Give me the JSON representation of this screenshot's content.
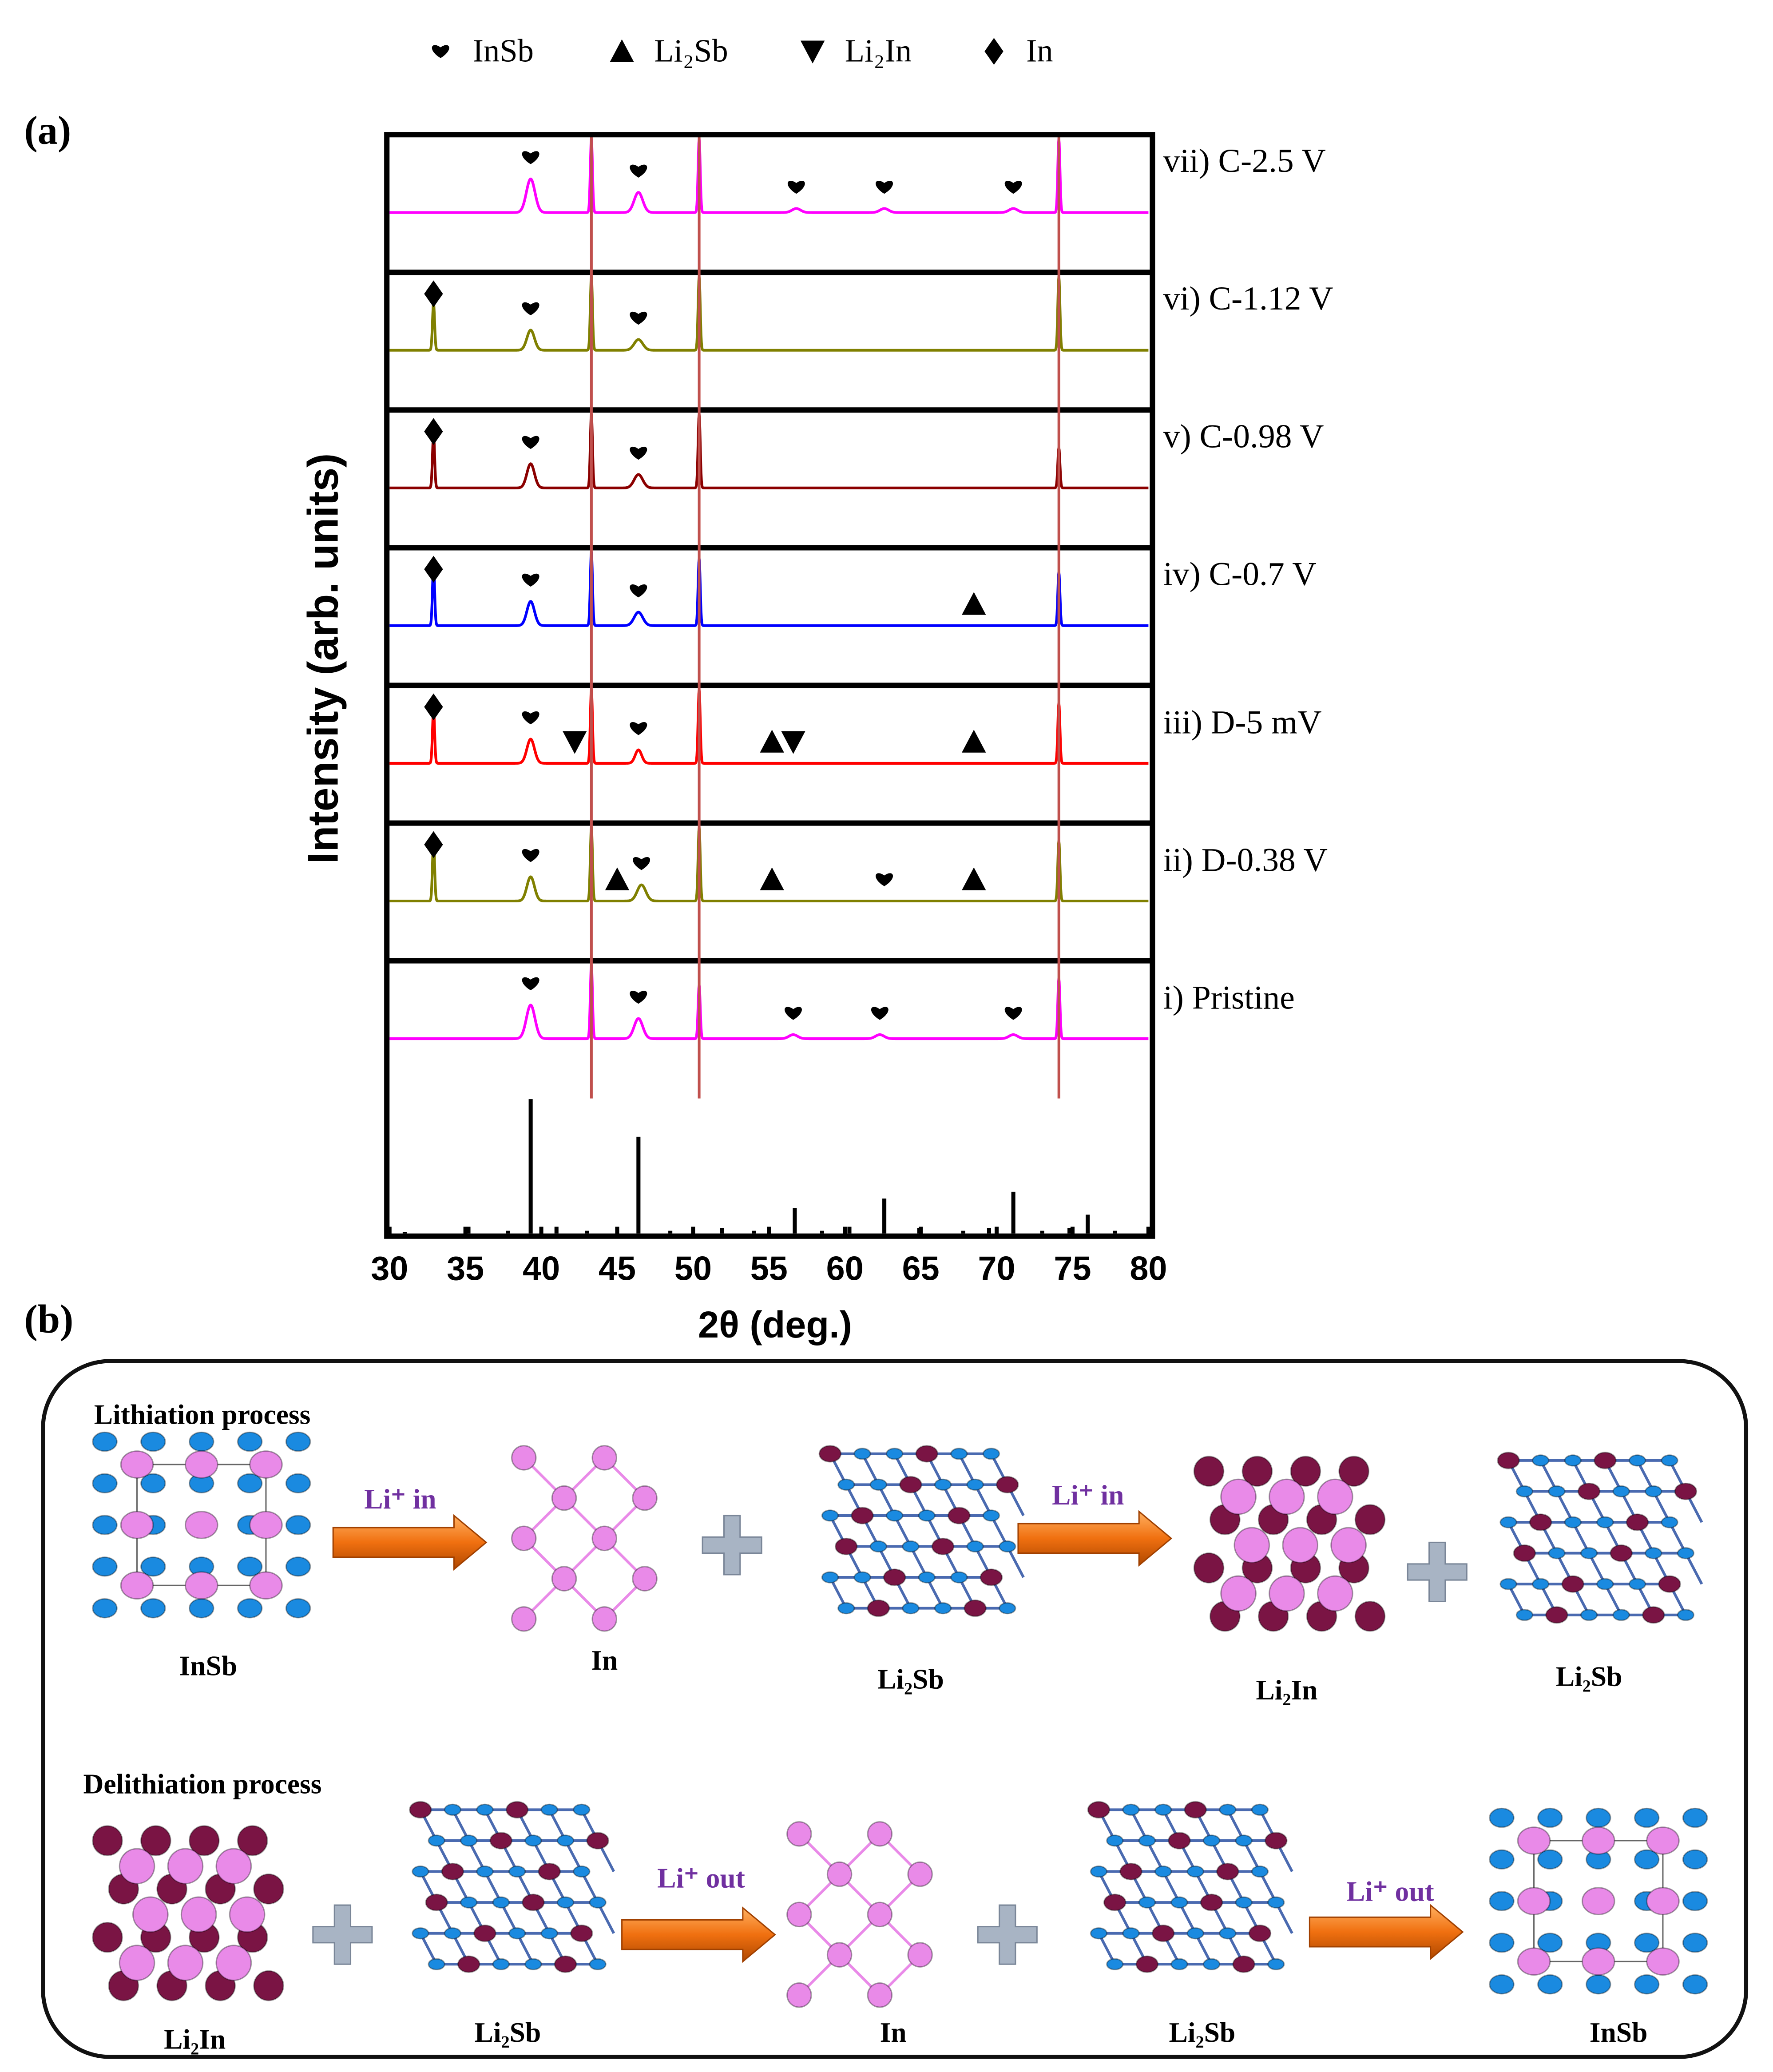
{
  "chart_data": {
    "type": "xrd-stack",
    "panel_label": "(a)",
    "x_label": "2θ (deg.)",
    "y_label": "Intensity (arb. units)",
    "xlim": [
      30,
      80
    ],
    "xticks": [
      30,
      35,
      40,
      45,
      50,
      55,
      60,
      65,
      70,
      75,
      80
    ],
    "legend": [
      {
        "name": "InSb",
        "marker": "heart"
      },
      {
        "name": "Li₂Sb",
        "marker": "triangle"
      },
      {
        "name": "Li₂In",
        "marker": "down-triangle"
      },
      {
        "name": "In",
        "marker": "diamond"
      }
    ],
    "reference_lines": [
      43.3,
      50.4,
      74.1
    ],
    "reference_line_color": "#c0504d",
    "patterns": [
      {
        "label": "vii) C-2.5 V",
        "color": "#ff00ff",
        "peaks_x": [
          39.3,
          43.3,
          46.4,
          50.4,
          56.8,
          62.6,
          71.1,
          74.1
        ],
        "peaks_intensity": [
          25,
          55,
          15,
          55,
          3,
          3,
          3,
          55
        ],
        "peaks_width": [
          0.4,
          0.1,
          0.4,
          0.1,
          0.4,
          0.4,
          0.4,
          0.1
        ],
        "markers": [
          {
            "x": 39.3,
            "phase": 0
          },
          {
            "x": 46.4,
            "phase": 0
          },
          {
            "x": 56.8,
            "phase": 0
          },
          {
            "x": 62.6,
            "phase": 0
          },
          {
            "x": 71.1,
            "phase": 0
          }
        ]
      },
      {
        "label": "vi) C-1.12 V",
        "color": "#808000",
        "peaks_x": [
          32.9,
          39.3,
          43.3,
          46.4,
          50.4,
          74.1
        ],
        "peaks_intensity": [
          35,
          15,
          55,
          8,
          55,
          55
        ],
        "peaks_width": [
          0.1,
          0.35,
          0.1,
          0.4,
          0.1,
          0.1
        ],
        "markers": [
          {
            "x": 32.9,
            "phase": 3
          },
          {
            "x": 39.3,
            "phase": 0
          },
          {
            "x": 46.4,
            "phase": 0
          }
        ]
      },
      {
        "label": "v) C-0.98 V",
        "color": "#8b0000",
        "peaks_x": [
          32.9,
          39.3,
          43.3,
          46.4,
          50.4,
          74.1
        ],
        "peaks_intensity": [
          40,
          18,
          55,
          10,
          55,
          30
        ],
        "peaks_width": [
          0.1,
          0.35,
          0.1,
          0.4,
          0.1,
          0.1
        ],
        "markers": [
          {
            "x": 32.9,
            "phase": 3
          },
          {
            "x": 39.3,
            "phase": 0
          },
          {
            "x": 46.4,
            "phase": 0
          }
        ]
      },
      {
        "label": "iv) C-0.7 V",
        "color": "#0000ff",
        "peaks_x": [
          32.9,
          39.3,
          43.3,
          46.4,
          50.4,
          74.1
        ],
        "peaks_intensity": [
          45,
          18,
          55,
          10,
          50,
          40
        ],
        "peaks_width": [
          0.1,
          0.35,
          0.1,
          0.4,
          0.1,
          0.1
        ],
        "markers": [
          {
            "x": 32.9,
            "phase": 3
          },
          {
            "x": 39.3,
            "phase": 0
          },
          {
            "x": 46.4,
            "phase": 0
          },
          {
            "x": 68.5,
            "phase": 1
          }
        ]
      },
      {
        "label": "iii) D-5 mV",
        "color": "#ff0000",
        "peaks_x": [
          32.9,
          39.3,
          43.3,
          46.4,
          50.4,
          74.1
        ],
        "peaks_intensity": [
          40,
          18,
          55,
          10,
          55,
          45
        ],
        "peaks_width": [
          0.1,
          0.35,
          0.1,
          0.3,
          0.1,
          0.1
        ],
        "markers": [
          {
            "x": 32.9,
            "phase": 3
          },
          {
            "x": 39.3,
            "phase": 0
          },
          {
            "x": 42.2,
            "phase": 2
          },
          {
            "x": 46.4,
            "phase": 0
          },
          {
            "x": 55.2,
            "phase": 1
          },
          {
            "x": 56.6,
            "phase": 2
          },
          {
            "x": 68.5,
            "phase": 1
          }
        ]
      },
      {
        "label": "ii) D-0.38 V",
        "color": "#808000",
        "peaks_x": [
          32.9,
          39.3,
          43.3,
          46.6,
          50.4,
          74.1
        ],
        "peaks_intensity": [
          45,
          18,
          55,
          12,
          55,
          45
        ],
        "peaks_width": [
          0.1,
          0.35,
          0.1,
          0.4,
          0.1,
          0.1
        ],
        "markers": [
          {
            "x": 32.9,
            "phase": 3
          },
          {
            "x": 39.3,
            "phase": 0
          },
          {
            "x": 45.0,
            "phase": 1
          },
          {
            "x": 46.6,
            "phase": 0
          },
          {
            "x": 55.2,
            "phase": 1
          },
          {
            "x": 62.6,
            "phase": 0
          },
          {
            "x": 68.5,
            "phase": 1
          }
        ]
      },
      {
        "label": "i) Pristine",
        "color": "#ff00ff",
        "peaks_x": [
          39.3,
          43.3,
          46.4,
          50.4,
          56.6,
          62.3,
          71.1,
          74.1
        ],
        "peaks_intensity": [
          25,
          55,
          15,
          40,
          3,
          3,
          3,
          45
        ],
        "peaks_width": [
          0.4,
          0.1,
          0.4,
          0.1,
          0.4,
          0.4,
          0.4,
          0.1
        ],
        "markers": [
          {
            "x": 39.3,
            "phase": 0
          },
          {
            "x": 46.4,
            "phase": 0
          },
          {
            "x": 56.6,
            "phase": 0
          },
          {
            "x": 62.3,
            "phase": 0
          },
          {
            "x": 71.1,
            "phase": 0
          }
        ]
      }
    ],
    "reference_pattern": {
      "color": "#000000",
      "x": [
        31.0,
        35.2,
        37.8,
        39.3,
        41.0,
        43.0,
        46.4,
        48.5,
        51.9,
        54.0,
        56.7,
        58.5,
        60.3,
        62.6,
        64.9,
        67.8,
        69.5,
        71.1,
        73.0,
        74.8,
        76.0,
        77.8
      ],
      "values": [
        1,
        5,
        2,
        100,
        5,
        2,
        72,
        2,
        4,
        2,
        19,
        2,
        5,
        26,
        4,
        2,
        4,
        31,
        2,
        4,
        14,
        2
      ]
    }
  },
  "diagram": {
    "panel_label": "(b)",
    "rows": [
      {
        "title": "Lithiation process",
        "items": [
          {
            "kind": "structure",
            "structure": "insb",
            "label": "InSb"
          },
          {
            "kind": "arrow",
            "label": "Li⁺ in"
          },
          {
            "kind": "structure",
            "structure": "in",
            "label": "In"
          },
          {
            "kind": "plus"
          },
          {
            "kind": "structure",
            "structure": "li2sb",
            "label": "Li₂Sb"
          },
          {
            "kind": "arrow",
            "label": "Li⁺ in"
          },
          {
            "kind": "structure",
            "structure": "li2in",
            "label": "Li₂In"
          },
          {
            "kind": "plus"
          },
          {
            "kind": "structure",
            "structure": "li2sb",
            "label": "Li₂Sb"
          }
        ]
      },
      {
        "title": "Delithiation process",
        "items": [
          {
            "kind": "structure",
            "structure": "li2in",
            "label": "Li₂In"
          },
          {
            "kind": "plus"
          },
          {
            "kind": "structure",
            "structure": "li2sb",
            "label": "Li₂Sb"
          },
          {
            "kind": "arrow",
            "label": "Li⁺ out"
          },
          {
            "kind": "structure",
            "structure": "in",
            "label": "In"
          },
          {
            "kind": "plus"
          },
          {
            "kind": "structure",
            "structure": "li2sb",
            "label": "Li₂Sb"
          },
          {
            "kind": "arrow",
            "label": "Li⁺ out"
          },
          {
            "kind": "structure",
            "structure": "insb",
            "label": "InSb"
          }
        ]
      }
    ]
  }
}
